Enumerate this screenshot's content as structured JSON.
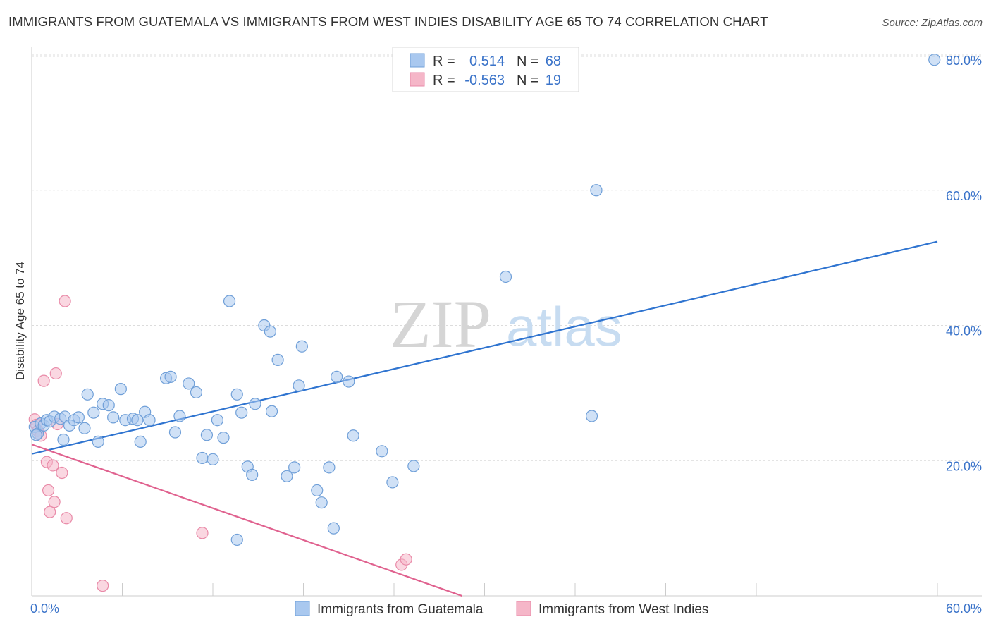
{
  "header": {
    "title": "IMMIGRANTS FROM GUATEMALA VS IMMIGRANTS FROM WEST INDIES DISABILITY AGE 65 TO 74 CORRELATION CHART",
    "source": "Source: ZipAtlas.com"
  },
  "watermark": {
    "zip": "ZIP",
    "atlas": "atlas"
  },
  "stats": {
    "rows": [
      {
        "r_label": "R =",
        "r_value": "0.514",
        "n_label": "N =",
        "n_value": "68",
        "color": "#a9c8ef"
      },
      {
        "r_label": "R =",
        "r_value": "-0.563",
        "n_label": "N =",
        "n_value": "19",
        "color": "#f5b6c8"
      }
    ]
  },
  "chart_data": {
    "type": "scatter",
    "title": "IMMIGRANTS FROM GUATEMALA VS IMMIGRANTS FROM WEST INDIES DISABILITY AGE 65 TO 74 CORRELATION CHART",
    "xlabel": "",
    "ylabel": "Disability Age 65 to 74",
    "xlim": [
      0,
      60
    ],
    "ylim": [
      0,
      80
    ],
    "x_tick_labels": [
      "0.0%",
      "60.0%"
    ],
    "y_ticks": [
      20,
      40,
      60,
      80
    ],
    "y_tick_labels": [
      "20.0%",
      "40.0%",
      "60.0%",
      "80.0%"
    ],
    "grid": true,
    "legend_position": "bottom",
    "series": [
      {
        "name": "Immigrants from Guatemala",
        "color": "#a9c8ef",
        "stroke": "#6f9fd8",
        "trend_color": "#2f74d0",
        "trend": {
          "x": [
            0,
            60
          ],
          "y": [
            21.0,
            52.4
          ]
        },
        "points": [
          [
            0.2,
            25.0
          ],
          [
            0.4,
            24.0
          ],
          [
            0.6,
            25.5
          ],
          [
            0.8,
            25.2
          ],
          [
            1.0,
            26.0
          ],
          [
            1.2,
            25.8
          ],
          [
            1.5,
            26.5
          ],
          [
            1.9,
            26.2
          ],
          [
            2.2,
            26.5
          ],
          [
            2.5,
            25.2
          ],
          [
            2.8,
            26.0
          ],
          [
            3.1,
            26.4
          ],
          [
            3.5,
            24.8
          ],
          [
            3.7,
            29.8
          ],
          [
            4.1,
            27.1
          ],
          [
            4.4,
            22.8
          ],
          [
            4.7,
            28.4
          ],
          [
            5.4,
            26.4
          ],
          [
            5.1,
            28.2
          ],
          [
            6.2,
            26.0
          ],
          [
            5.9,
            30.6
          ],
          [
            6.7,
            26.2
          ],
          [
            7.0,
            26.0
          ],
          [
            7.5,
            27.2
          ],
          [
            7.2,
            22.8
          ],
          [
            7.8,
            26.0
          ],
          [
            8.9,
            32.2
          ],
          [
            9.2,
            32.4
          ],
          [
            9.5,
            24.2
          ],
          [
            9.8,
            26.6
          ],
          [
            10.4,
            31.4
          ],
          [
            10.9,
            30.1
          ],
          [
            11.3,
            20.4
          ],
          [
            11.6,
            23.8
          ],
          [
            12.0,
            20.2
          ],
          [
            12.3,
            26.0
          ],
          [
            12.7,
            23.4
          ],
          [
            13.1,
            43.6
          ],
          [
            13.6,
            29.8
          ],
          [
            13.9,
            27.1
          ],
          [
            14.3,
            19.1
          ],
          [
            14.6,
            17.9
          ],
          [
            14.8,
            28.4
          ],
          [
            15.4,
            40.0
          ],
          [
            15.8,
            39.1
          ],
          [
            15.9,
            27.3
          ],
          [
            16.3,
            34.9
          ],
          [
            16.9,
            17.7
          ],
          [
            17.4,
            19.0
          ],
          [
            17.7,
            31.1
          ],
          [
            17.9,
            36.9
          ],
          [
            18.9,
            15.6
          ],
          [
            19.2,
            13.8
          ],
          [
            19.7,
            19.0
          ],
          [
            20.0,
            10.0
          ],
          [
            20.2,
            32.4
          ],
          [
            21.0,
            31.7
          ],
          [
            21.3,
            23.7
          ],
          [
            23.2,
            21.4
          ],
          [
            23.9,
            16.8
          ],
          [
            25.3,
            19.2
          ],
          [
            31.4,
            47.2
          ],
          [
            37.1,
            26.6
          ],
          [
            37.4,
            60.0
          ],
          [
            59.8,
            79.3
          ],
          [
            0.3,
            23.8
          ],
          [
            2.1,
            23.1
          ],
          [
            13.6,
            8.3
          ]
        ]
      },
      {
        "name": "Immigrants from West Indies",
        "color": "#f5b6c8",
        "stroke": "#e98aa8",
        "trend_color": "#e0628f",
        "trend": {
          "x": [
            0,
            28.5
          ],
          "y": [
            22.4,
            0
          ]
        },
        "points": [
          [
            0.2,
            26.1
          ],
          [
            0.3,
            25.3
          ],
          [
            0.4,
            24.4
          ],
          [
            0.6,
            23.7
          ],
          [
            0.8,
            31.8
          ],
          [
            1.0,
            19.8
          ],
          [
            1.1,
            15.6
          ],
          [
            1.2,
            12.4
          ],
          [
            1.4,
            19.3
          ],
          [
            1.5,
            13.9
          ],
          [
            1.7,
            25.4
          ],
          [
            1.6,
            32.9
          ],
          [
            2.0,
            18.2
          ],
          [
            2.2,
            43.6
          ],
          [
            2.3,
            11.5
          ],
          [
            4.7,
            1.5
          ],
          [
            11.3,
            9.3
          ],
          [
            24.5,
            4.6
          ],
          [
            24.8,
            5.4
          ]
        ]
      }
    ]
  }
}
